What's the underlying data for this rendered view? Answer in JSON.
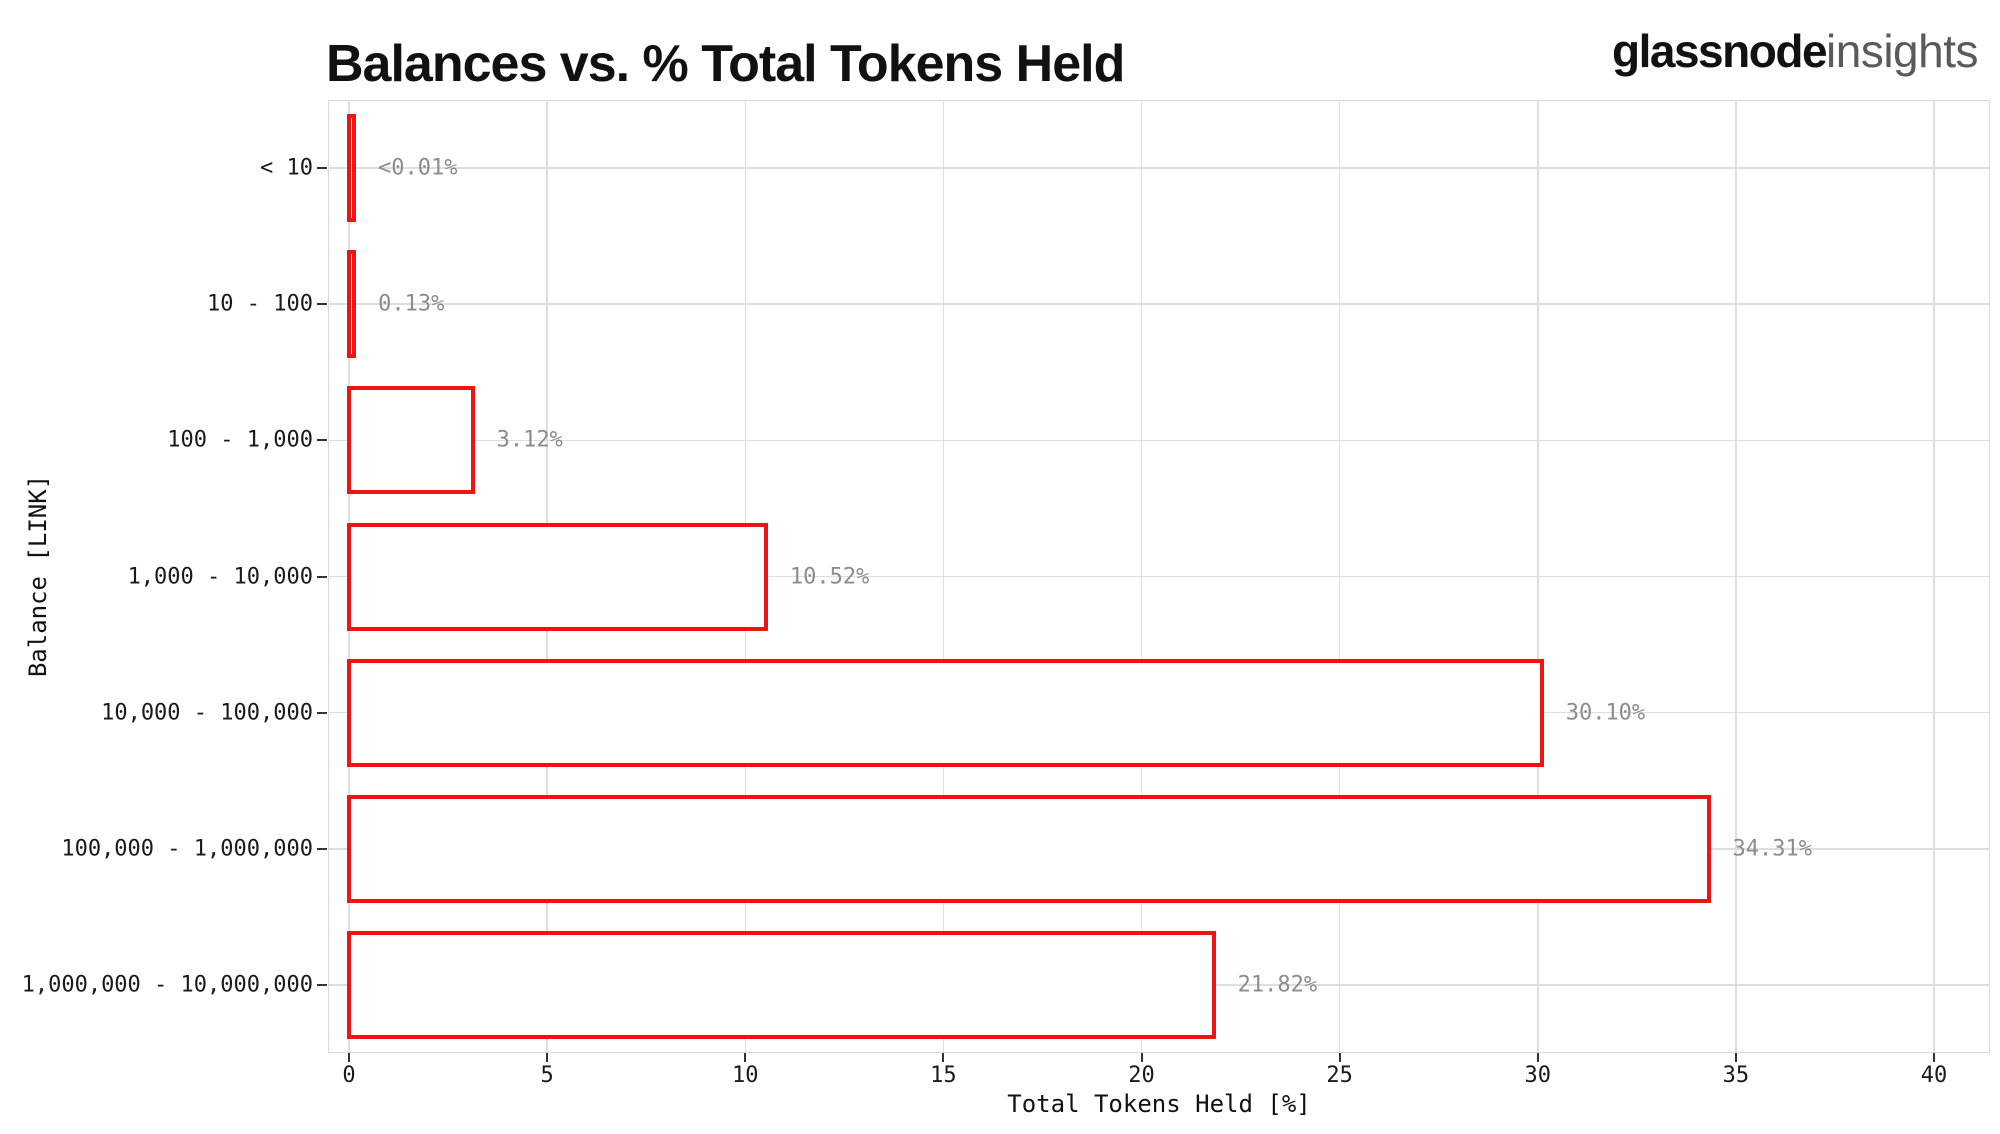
{
  "title": "Balances vs. % Total Tokens Held",
  "logo": {
    "primary": "glassnode",
    "secondary": "insights"
  },
  "chart_data": {
    "type": "bar",
    "orientation": "horizontal",
    "title": "Balances vs. % Total Tokens Held",
    "xlabel": "Total Tokens Held [%]",
    "ylabel": "Balance [LINK]",
    "categories": [
      "< 10",
      "10 - 100",
      "100 - 1,000",
      "1,000 - 10,000",
      "10,000 - 100,000",
      "100,000 - 1,000,000",
      "1,000,000 - 10,000,000"
    ],
    "values": [
      0.005,
      0.13,
      3.12,
      10.52,
      30.1,
      34.31,
      21.82
    ],
    "value_labels": [
      "<0.01%",
      "0.13%",
      "3.12%",
      "10.52%",
      "30.10%",
      "34.31%",
      "21.82%"
    ],
    "x_ticks": [
      0,
      5,
      10,
      15,
      20,
      25,
      30,
      35,
      40
    ],
    "x_tick_labels": [
      "0",
      "5",
      "10",
      "15",
      "20",
      "25",
      "30",
      "35",
      "40"
    ],
    "xlim": [
      0,
      41.4
    ],
    "grid": "major-only",
    "legend": "none",
    "bar_style": {
      "fill": "#ffffff",
      "stroke": "#ed1414"
    }
  },
  "colors": {
    "bar_stroke": "#ed1414",
    "bar_fill": "#ffffff",
    "gridline": "#dedede",
    "panel_border": "#d9d9d9",
    "tick_mark": "#333333",
    "axis_text": "#1a1a1a",
    "value_label_text": "#8c8c8c",
    "title_text": "#111111",
    "logo_primary": "#111111",
    "logo_secondary": "#5a5a5a",
    "background": "#ffffff"
  }
}
